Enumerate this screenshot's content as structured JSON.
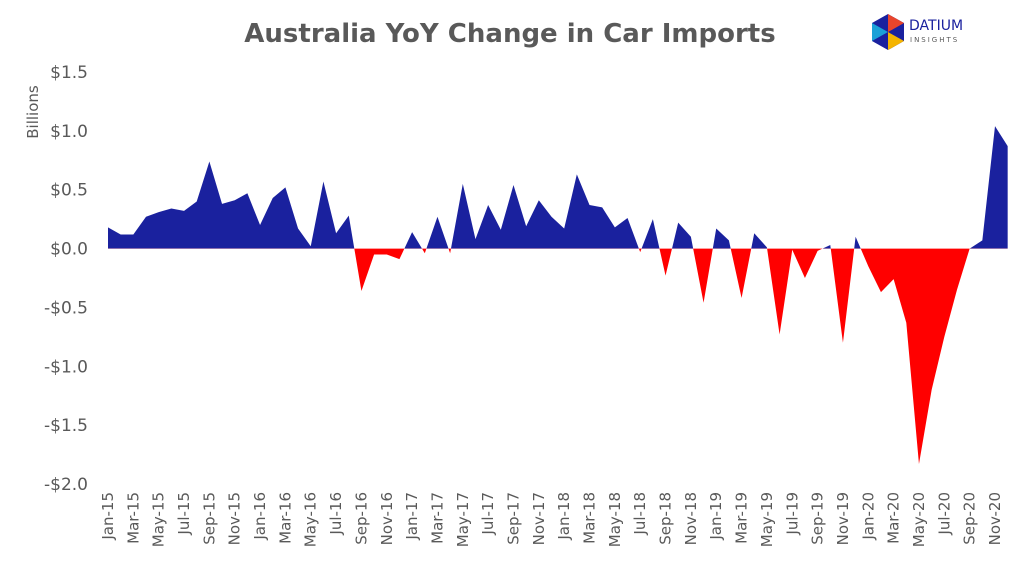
{
  "chart_data": {
    "type": "area",
    "title": "Australia YoY Change in Car Imports",
    "y_axis_label": "Billions",
    "categories": [
      "Jan-15",
      null,
      "Mar-15",
      null,
      "May-15",
      null,
      "Jul-15",
      null,
      "Sep-15",
      null,
      "Nov-15",
      null,
      "Jan-16",
      null,
      "Mar-16",
      null,
      "May-16",
      null,
      "Jul-16",
      null,
      "Sep-16",
      null,
      "Nov-16",
      null,
      "Jan-17",
      null,
      "Mar-17",
      null,
      "May-17",
      null,
      "Jul-17",
      null,
      "Sep-17",
      null,
      "Nov-17",
      null,
      "Jan-18",
      null,
      "Mar-18",
      null,
      "May-18",
      null,
      "Jul-18",
      null,
      "Sep-18",
      null,
      "Nov-18",
      null,
      "Jan-19",
      null,
      "Mar-19",
      null,
      "May-19",
      null,
      "Jul-19",
      null,
      "Sep-19",
      null,
      "Nov-19",
      null,
      "Jan-20",
      null,
      "Mar-20",
      null,
      "May-20",
      null,
      "Jul-20",
      null,
      "Sep-20",
      null,
      "Nov-20",
      null
    ],
    "values": [
      0.18,
      0.12,
      0.12,
      0.27,
      0.31,
      0.34,
      0.32,
      0.4,
      0.74,
      0.38,
      0.41,
      0.47,
      0.2,
      0.43,
      0.52,
      0.17,
      0.02,
      0.57,
      0.13,
      0.28,
      -0.36,
      -0.05,
      -0.05,
      -0.09,
      0.14,
      -0.04,
      0.27,
      -0.04,
      0.55,
      0.08,
      0.37,
      0.16,
      0.54,
      0.19,
      0.41,
      0.27,
      0.17,
      0.63,
      0.37,
      0.35,
      0.18,
      0.26,
      -0.03,
      0.25,
      -0.23,
      0.22,
      0.1,
      -0.46,
      0.17,
      0.07,
      -0.42,
      0.13,
      0.01,
      -0.73,
      -0.01,
      -0.25,
      -0.02,
      0.03,
      -0.8,
      0.1,
      -0.15,
      -0.37,
      -0.26,
      -0.63,
      -1.83,
      -1.2,
      -0.75,
      -0.35,
      0,
      0.07,
      1.04,
      0.87
    ],
    "color": "#1a219e",
    "negative_color": "#ff0000",
    "ylim": [
      -2,
      1.5
    ],
    "yticks": [
      {
        "value": -2,
        "label": "-$2.0"
      },
      {
        "value": -1.5,
        "label": "-$1.5"
      },
      {
        "value": -1,
        "label": "-$1.0"
      },
      {
        "value": -0.5,
        "label": "-$0.5"
      },
      {
        "value": 0,
        "label": "$0.0"
      },
      {
        "value": 0.5,
        "label": "$0.5"
      },
      {
        "value": 1,
        "label": "$1.0"
      },
      {
        "value": 1.5,
        "label": "$1.5"
      }
    ],
    "grid": false
  },
  "logo": {
    "name": "DATIUM",
    "tagline": "INSIGHTS"
  }
}
